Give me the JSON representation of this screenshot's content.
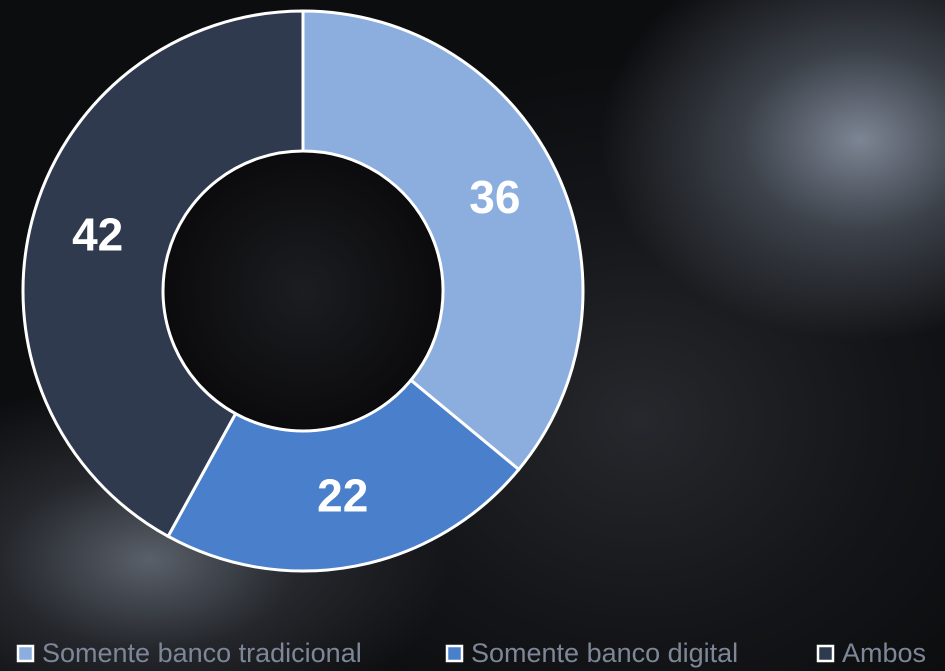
{
  "chart_data": {
    "type": "donut",
    "categories": [
      "Somente banco tradicional",
      "Somente banco digital",
      "Ambos"
    ],
    "values": [
      36,
      22,
      42
    ],
    "colors": [
      "#8caedf",
      "#4a80cb",
      "#2f3a4e"
    ],
    "legend": "bottom"
  }
}
